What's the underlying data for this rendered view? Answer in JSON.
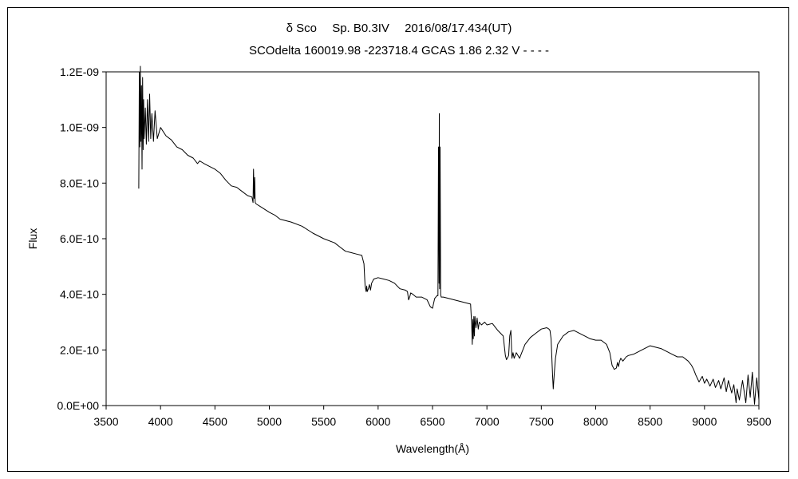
{
  "chart_data": {
    "type": "line",
    "title": "δ Sco　 Sp. B0.3IV　 2016/08/17.434(UT)",
    "subtitle": "SCOdelta 160019.98 -223718.4 GCAS 1.86 2.32 V - - - -",
    "xlabel": "Wavelength(Å)",
    "ylabel": "Flux",
    "xlim": [
      3500,
      9500
    ],
    "ylim": [
      0,
      1.2e-09
    ],
    "x_ticks": [
      3500,
      4000,
      4500,
      5000,
      5500,
      6000,
      6500,
      7000,
      7500,
      8000,
      8500,
      9000,
      9500
    ],
    "x_tick_labels": [
      "3500",
      "4000",
      "4500",
      "5000",
      "5500",
      "6000",
      "6500",
      "7000",
      "7500",
      "8000",
      "8500",
      "9000",
      "9500"
    ],
    "y_ticks": [
      0,
      2e-10,
      4e-10,
      6e-10,
      8e-10,
      1e-09,
      1.2e-09
    ],
    "y_tick_labels": [
      "0.0E+00",
      "2.0E-10",
      "4.0E-10",
      "6.0E-10",
      "8.0E-10",
      "1.0E-09",
      "1.2E-09"
    ],
    "grid": false,
    "legend": "none",
    "line_color": "#000000",
    "series": [
      {
        "x": [
          3800,
          3805,
          3810,
          3815,
          3820,
          3825,
          3830,
          3835,
          3840,
          3845,
          3850,
          3860,
          3870,
          3880,
          3890,
          3900,
          3910,
          3920,
          3935,
          3950,
          3970,
          4000,
          4050,
          4100,
          4150,
          4200,
          4250,
          4300,
          4340,
          4360,
          4400,
          4450,
          4500,
          4550,
          4600,
          4650,
          4700,
          4750,
          4800,
          4840,
          4850,
          4855,
          4861,
          4866,
          4870,
          4880,
          4920,
          5000,
          5050,
          5100,
          5150,
          5200,
          5300,
          5400,
          5500,
          5600,
          5650,
          5700,
          5750,
          5800,
          5850,
          5870,
          5880,
          5890,
          5895,
          5900,
          5910,
          5920,
          5930,
          5940,
          5960,
          6000,
          6050,
          6100,
          6150,
          6200,
          6250,
          6270,
          6280,
          6290,
          6300,
          6320,
          6350,
          6400,
          6450,
          6480,
          6500,
          6520,
          6540,
          6550,
          6555,
          6560,
          6562,
          6565,
          6570,
          6575,
          6580,
          6600,
          6650,
          6700,
          6750,
          6800,
          6850,
          6860,
          6865,
          6870,
          6875,
          6880,
          6885,
          6890,
          6900,
          6910,
          6920,
          6930,
          6950,
          6980,
          7000,
          7050,
          7100,
          7150,
          7170,
          7180,
          7200,
          7210,
          7220,
          7230,
          7240,
          7250,
          7270,
          7300,
          7320,
          7350,
          7400,
          7450,
          7500,
          7550,
          7570,
          7580,
          7590,
          7595,
          7600,
          7605,
          7610,
          7620,
          7630,
          7650,
          7700,
          7750,
          7800,
          7850,
          7900,
          7950,
          8000,
          8050,
          8100,
          8130,
          8150,
          8170,
          8190,
          8200,
          8210,
          8220,
          8230,
          8250,
          8280,
          8300,
          8350,
          8400,
          8450,
          8500,
          8550,
          8600,
          8650,
          8700,
          8750,
          8800,
          8850,
          8880,
          8900,
          8920,
          8950,
          8980,
          9000,
          9020,
          9050,
          9080,
          9100,
          9130,
          9150,
          9180,
          9200,
          9220,
          9250,
          9270,
          9290,
          9300,
          9320,
          9350,
          9380,
          9400,
          9420,
          9440,
          9460,
          9480,
          9500
        ],
        "y": [
          7.8e-10,
          1.2e-09,
          9.3e-10,
          1.22e-09,
          9.5e-10,
          1.15e-09,
          8.5e-10,
          1.18e-09,
          9.2e-10,
          1.1e-09,
          9.6e-10,
          1.07e-09,
          9.4e-10,
          1.1e-09,
          9.5e-10,
          1.12e-09,
          9.6e-10,
          1.05e-09,
          9.5e-10,
          1.06e-09,
          9.6e-10,
          1e-09,
          9.7e-10,
          9.55e-10,
          9.3e-10,
          9.2e-10,
          9e-10,
          8.9e-10,
          8.7e-10,
          8.8e-10,
          8.7e-10,
          8.6e-10,
          8.5e-10,
          8.35e-10,
          8.1e-10,
          7.9e-10,
          7.85e-10,
          7.7e-10,
          7.55e-10,
          7.5e-10,
          7.3e-10,
          8.5e-10,
          7.45e-10,
          8.2e-10,
          7.3e-10,
          7.25e-10,
          7.15e-10,
          6.95e-10,
          6.85e-10,
          6.7e-10,
          6.65e-10,
          6.6e-10,
          6.45e-10,
          6.2e-10,
          6e-10,
          5.85e-10,
          5.7e-10,
          5.55e-10,
          5.5e-10,
          5.45e-10,
          5.4e-10,
          5.1e-10,
          4.3e-10,
          4.1e-10,
          4.3e-10,
          4.1e-10,
          4.2e-10,
          4.35e-10,
          4.15e-10,
          4.4e-10,
          4.55e-10,
          4.6e-10,
          4.55e-10,
          4.5e-10,
          4.4e-10,
          4.2e-10,
          4.15e-10,
          4.1e-10,
          3.8e-10,
          3.9e-10,
          4.05e-10,
          4e-10,
          3.9e-10,
          3.9e-10,
          3.8e-10,
          3.55e-10,
          3.5e-10,
          3.85e-10,
          3.95e-10,
          3.95e-10,
          9.3e-10,
          4.4e-10,
          1.05e-09,
          4.2e-10,
          9.3e-10,
          4e-10,
          3.9e-10,
          3.9e-10,
          3.85e-10,
          3.8e-10,
          3.75e-10,
          3.7e-10,
          3.65e-10,
          2.9e-10,
          2.2e-10,
          3.1e-10,
          2.4e-10,
          3.2e-10,
          2.5e-10,
          3.2e-10,
          2.8e-10,
          3.15e-10,
          2.75e-10,
          3e-10,
          2.9e-10,
          3e-10,
          2.9e-10,
          2.95e-10,
          2.7e-10,
          2.5e-10,
          1.8e-10,
          1.65e-10,
          1.8e-10,
          2.5e-10,
          2.7e-10,
          1.7e-10,
          1.9e-10,
          1.7e-10,
          1.9e-10,
          1.7e-10,
          1.9e-10,
          2.2e-10,
          2.45e-10,
          2.6e-10,
          2.75e-10,
          2.8e-10,
          2.75e-10,
          2.7e-10,
          2.4e-10,
          1.9e-10,
          1.4e-10,
          1e-10,
          6e-11,
          1.2e-10,
          1.7e-10,
          2.2e-10,
          2.5e-10,
          2.65e-10,
          2.7e-10,
          2.6e-10,
          2.5e-10,
          2.4e-10,
          2.35e-10,
          2.35e-10,
          2.2e-10,
          1.9e-10,
          1.45e-10,
          1.3e-10,
          1.35e-10,
          1.55e-10,
          1.4e-10,
          1.6e-10,
          1.7e-10,
          1.6e-10,
          1.75e-10,
          1.8e-10,
          1.85e-10,
          1.95e-10,
          2.05e-10,
          2.15e-10,
          2.1e-10,
          2.05e-10,
          1.95e-10,
          1.85e-10,
          1.75e-10,
          1.75e-10,
          1.6e-10,
          1.45e-10,
          1.3e-10,
          1.1e-10,
          8.5e-11,
          1.05e-10,
          8e-11,
          9.5e-11,
          7e-11,
          9.5e-11,
          6.5e-11,
          9e-11,
          6e-11,
          1e-10,
          5e-11,
          9e-11,
          4.5e-11,
          7.5e-11,
          1e-11,
          6e-11,
          2e-11,
          9e-11,
          1e-11,
          1.1e-10,
          3e-11,
          1.2e-10,
          5e-12,
          1e-10,
          2e-11
        ]
      }
    ]
  }
}
